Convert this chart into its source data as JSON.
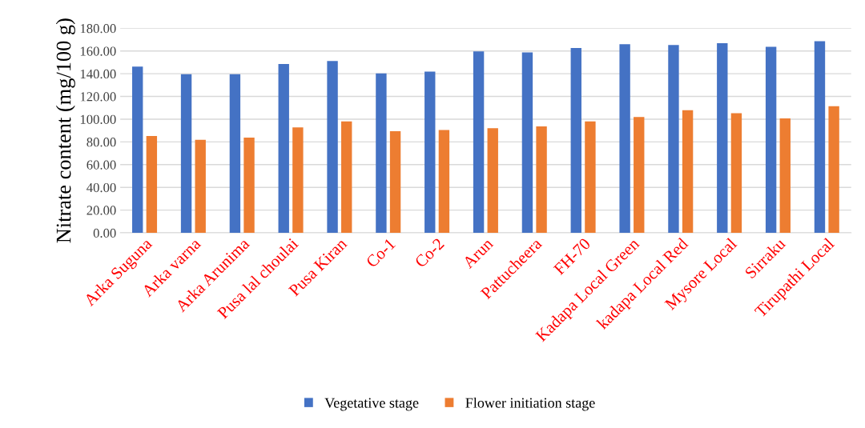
{
  "chart_data": {
    "type": "bar",
    "ylabel": "Nitrate content (mg/100 g)",
    "categories": [
      "Arka Suguna",
      "Arka varna",
      "Arka Arunima",
      "Pusa lal choulai",
      "Pusa Kiran",
      "Co-1",
      "Co-2",
      "Arun",
      "Pattucheera",
      "FH-70",
      "Kadapa Local Green",
      "kadapa Local Red",
      "Mysore Local",
      "Sirraku",
      "Tirupathi Local"
    ],
    "series": [
      {
        "name": "Vegetative stage",
        "color": "#4472c4",
        "values": [
          146.2,
          139.6,
          139.6,
          148.5,
          151.1,
          140.3,
          141.9,
          159.6,
          158.7,
          162.7,
          166.0,
          165.3,
          166.9,
          163.6,
          168.6
        ]
      },
      {
        "name": "Flower initiation stage",
        "color": "#ed7d31",
        "values": [
          85.2,
          81.9,
          83.8,
          92.8,
          98.0,
          89.5,
          90.4,
          92.1,
          93.7,
          98.0,
          102.0,
          107.9,
          105.3,
          100.6,
          111.5
        ]
      }
    ],
    "ylim": [
      0,
      180
    ],
    "yticks": [
      {
        "value": 0,
        "label": "0.00"
      },
      {
        "value": 20,
        "label": "20.00"
      },
      {
        "value": 40,
        "label": "40.00"
      },
      {
        "value": 60,
        "label": "60.00"
      },
      {
        "value": 80,
        "label": "80.00"
      },
      {
        "value": 100,
        "label": "100.00"
      },
      {
        "value": 120,
        "label": "120.00"
      },
      {
        "value": 140,
        "label": "140.00"
      },
      {
        "value": 160,
        "label": "160.00"
      },
      {
        "value": 180,
        "label": "180.00"
      }
    ],
    "grid": "y",
    "legend": "bottom"
  }
}
